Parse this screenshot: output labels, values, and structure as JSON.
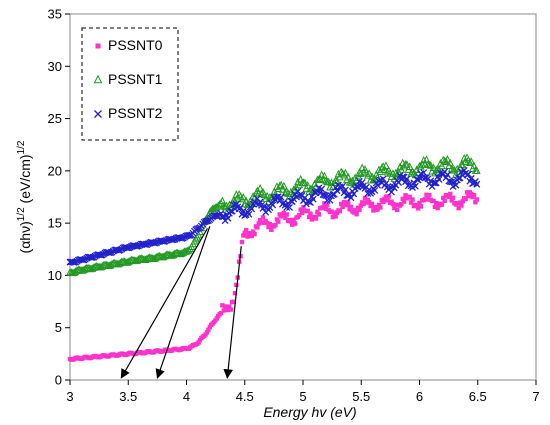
{
  "chart_data": {
    "type": "scatter",
    "title": "",
    "xlabel": "Energy hv (eV)",
    "ylabel": {
      "base": "(αhν)",
      "exp1": "1/2",
      "mid": " (eV/cm)",
      "exp2": "1/2"
    },
    "xlim": [
      3,
      7
    ],
    "ylim": [
      0,
      35
    ],
    "xticks": [
      "3",
      "3.5",
      "4",
      "4.5",
      "5",
      "5.5",
      "6",
      "6.5",
      "7"
    ],
    "yticks": [
      "0",
      "5",
      "10",
      "15",
      "20",
      "25",
      "30",
      "35"
    ],
    "grid": false,
    "legend": "top-left",
    "series": [
      {
        "name": "PSSNT0",
        "marker": "square",
        "color": "#ff33cc",
        "x": [
          3.0,
          3.1,
          3.2,
          3.3,
          3.4,
          3.5,
          3.6,
          3.7,
          3.8,
          3.9,
          4.0,
          4.05,
          4.1,
          4.15,
          4.2,
          4.25,
          4.3,
          4.35,
          4.4,
          4.43,
          4.45,
          4.47,
          4.48,
          4.5,
          4.55,
          4.6,
          4.7,
          4.8,
          4.9,
          5.0,
          5.1,
          5.2,
          5.3,
          5.4,
          5.5,
          5.6,
          5.7,
          5.8,
          5.9,
          6.0,
          6.1,
          6.2,
          6.3,
          6.4,
          6.5
        ],
        "y": [
          2.0,
          2.1,
          2.2,
          2.3,
          2.4,
          2.5,
          2.6,
          2.7,
          2.8,
          2.9,
          3.0,
          3.2,
          3.6,
          4.2,
          5.0,
          5.8,
          6.4,
          7.0,
          7.8,
          9.0,
          10.5,
          12.0,
          13.0,
          14.0,
          14.3,
          14.6,
          15.0,
          15.3,
          15.5,
          15.8,
          16.0,
          16.2,
          16.3,
          16.5,
          16.6,
          16.8,
          16.9,
          17.0,
          17.0,
          17.1,
          17.0,
          17.2,
          17.1,
          17.3,
          17.4
        ]
      },
      {
        "name": "PSSNT1",
        "marker": "triangle",
        "color": "#229922",
        "x": [
          3.0,
          3.1,
          3.2,
          3.3,
          3.4,
          3.5,
          3.6,
          3.7,
          3.8,
          3.9,
          4.0,
          4.05,
          4.1,
          4.15,
          4.2,
          4.25,
          4.3,
          4.4,
          4.5,
          4.6,
          4.7,
          4.8,
          4.9,
          5.0,
          5.1,
          5.2,
          5.3,
          5.4,
          5.5,
          5.6,
          5.7,
          5.8,
          5.9,
          6.0,
          6.1,
          6.2,
          6.3,
          6.4,
          6.5
        ],
        "y": [
          10.2,
          10.5,
          10.7,
          10.9,
          11.1,
          11.3,
          11.5,
          11.6,
          11.8,
          12.0,
          12.2,
          12.8,
          13.8,
          15.0,
          16.0,
          16.5,
          16.8,
          17.0,
          17.2,
          17.5,
          17.7,
          18.0,
          18.2,
          18.5,
          18.7,
          19.0,
          19.2,
          19.3,
          19.5,
          19.7,
          19.8,
          20.0,
          20.1,
          20.3,
          20.4,
          20.5,
          20.3,
          20.6,
          20.5
        ]
      },
      {
        "name": "PSSNT2",
        "marker": "cross",
        "color": "#2222cc",
        "x": [
          3.0,
          3.1,
          3.2,
          3.3,
          3.4,
          3.5,
          3.6,
          3.7,
          3.8,
          3.9,
          4.0,
          4.05,
          4.1,
          4.15,
          4.2,
          4.25,
          4.3,
          4.4,
          4.5,
          4.6,
          4.7,
          4.8,
          4.9,
          5.0,
          5.1,
          5.2,
          5.3,
          5.4,
          5.5,
          5.6,
          5.7,
          5.8,
          5.9,
          6.0,
          6.1,
          6.2,
          6.3,
          6.4,
          6.5
        ],
        "y": [
          11.2,
          11.5,
          11.8,
          12.1,
          12.4,
          12.7,
          12.9,
          13.1,
          13.3,
          13.5,
          13.7,
          14.0,
          14.5,
          15.0,
          15.4,
          15.7,
          15.9,
          16.1,
          16.3,
          16.6,
          16.8,
          17.0,
          17.2,
          17.4,
          17.6,
          17.8,
          18.0,
          18.1,
          18.3,
          18.5,
          18.6,
          18.8,
          19.0,
          19.1,
          19.2,
          19.3,
          19.2,
          19.4,
          19.3
        ]
      }
    ],
    "arrows": [
      {
        "from": [
          4.18,
          14.5
        ],
        "to": [
          3.44,
          0.2
        ]
      },
      {
        "from": [
          4.2,
          14.7
        ],
        "to": [
          3.75,
          0.2
        ]
      },
      {
        "from": [
          4.47,
          12.8
        ],
        "to": [
          4.35,
          0.2
        ]
      }
    ]
  }
}
